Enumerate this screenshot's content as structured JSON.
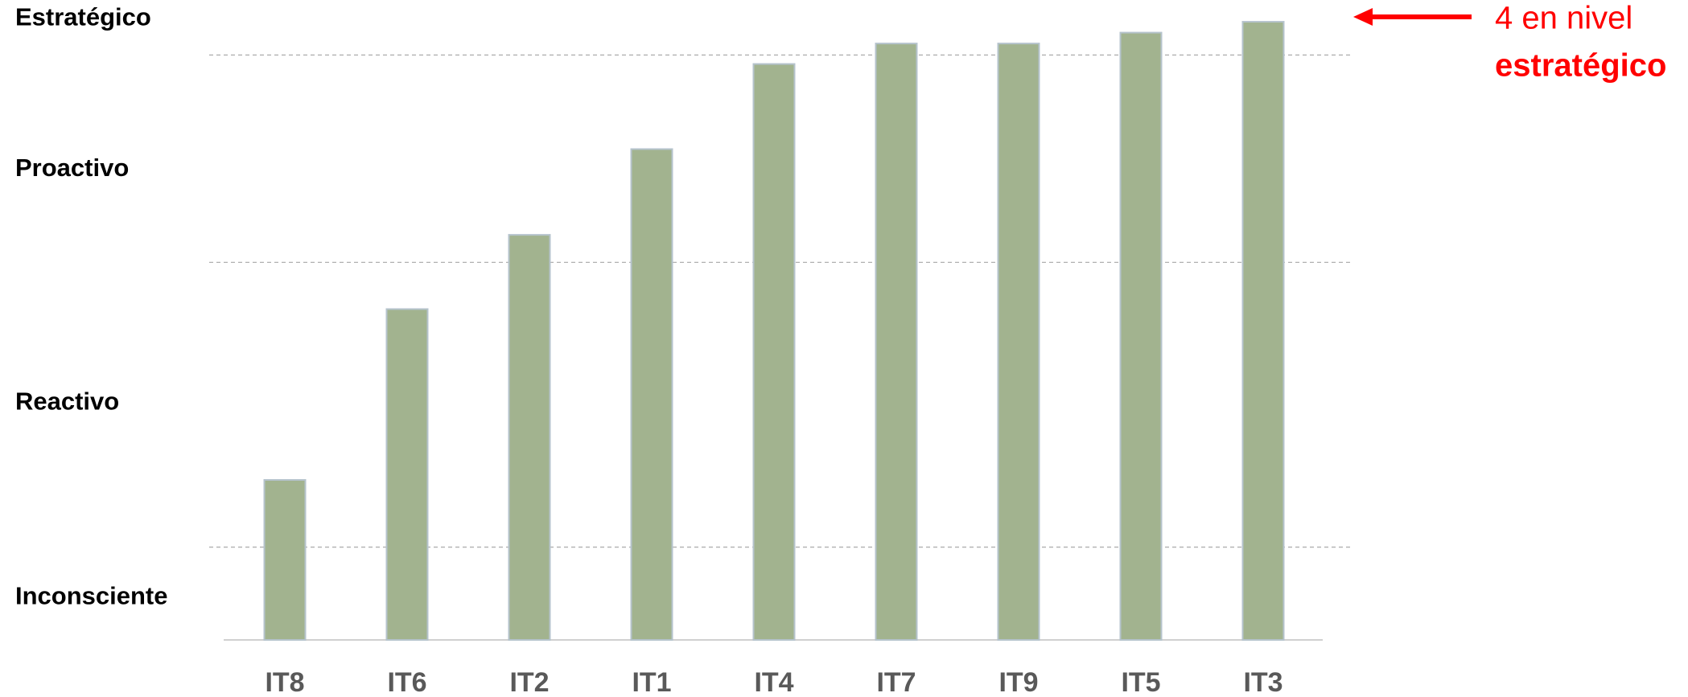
{
  "chart_data": {
    "type": "bar",
    "categories": [
      "IT8",
      "IT6",
      "IT2",
      "IT1",
      "IT4",
      "IT7",
      "IT9",
      "IT5",
      "IT3"
    ],
    "values": [
      25.0,
      51.7,
      63.3,
      76.7,
      90.0,
      93.2,
      93.2,
      94.9,
      96.6
    ],
    "color": "#a2b38f",
    "ylim": [
      0,
      100
    ],
    "yticks": [
      {
        "value": 6.6,
        "label": "Inconsciente"
      },
      {
        "value": 37.0,
        "label": "Reactivo"
      },
      {
        "value": 73.5,
        "label": "Proactivo"
      },
      {
        "value": 97.1,
        "label": "Estratégico"
      }
    ],
    "grid_lines": [
      14.5,
      59.0,
      91.4
    ],
    "annotation": {
      "lines": [
        "4 en nivel",
        "estratégico"
      ],
      "color": "#ff0000"
    }
  }
}
